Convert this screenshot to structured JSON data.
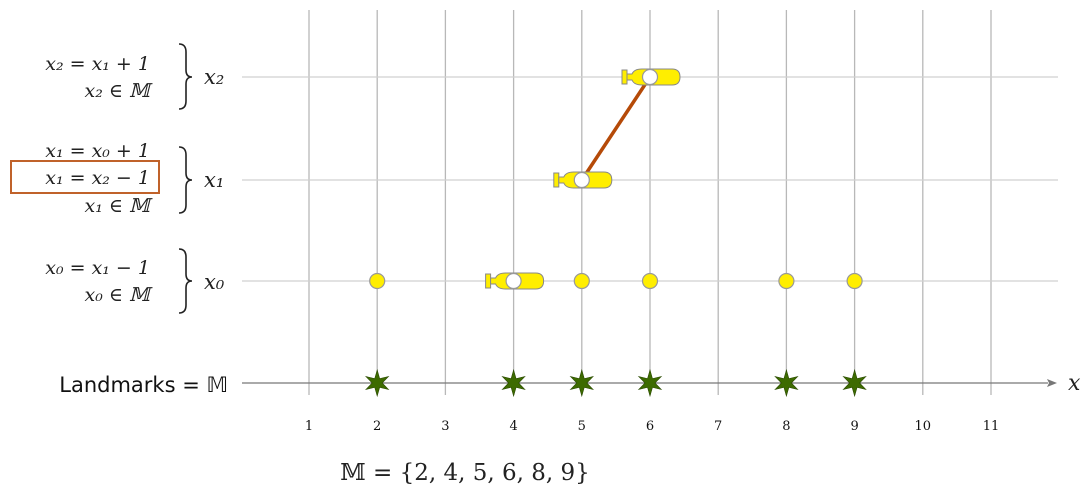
{
  "axis": {
    "label": "x",
    "ticks": [
      "1",
      "2",
      "3",
      "4",
      "5",
      "6",
      "7",
      "8",
      "9",
      "10",
      "11"
    ]
  },
  "landmarks": {
    "label": "Landmarks = 𝕄",
    "values": [
      2,
      4,
      5,
      6,
      8,
      9
    ],
    "marker_color": "#3d6b00"
  },
  "set_definition": "𝕄 = {2, 4, 5, 6, 8, 9}",
  "rows": [
    {
      "id": "x0",
      "label": "x₀",
      "equations": [
        "x₀ = x₁ − 1",
        "x₀ ∈ 𝕄"
      ],
      "highlighted_equation": null,
      "points": [
        2,
        4,
        5,
        6,
        8,
        9
      ],
      "pointer_at": 4
    },
    {
      "id": "x1",
      "label": "x₁",
      "equations": [
        "x₁ = x₀ + 1",
        "x₁ = x₂ − 1",
        "x₁ ∈ 𝕄"
      ],
      "highlighted_equation": 1,
      "points": [
        5
      ],
      "pointer_at": 5
    },
    {
      "id": "x2",
      "label": "x₂",
      "equations": [
        "x₂ = x₁ + 1",
        "x₂ ∈ 𝕄"
      ],
      "highlighted_equation": null,
      "points": [
        6
      ],
      "pointer_at": 6
    }
  ],
  "link": {
    "from": {
      "row": "x1",
      "x": 5
    },
    "to": {
      "row": "x2",
      "x": 6
    }
  },
  "colors": {
    "grid": "#b8b8b8",
    "point_fill": "#ffee00",
    "point_stroke": "#999999",
    "link": "#b54a08",
    "highlight_box": "#c0622a",
    "axis": "#777777"
  }
}
